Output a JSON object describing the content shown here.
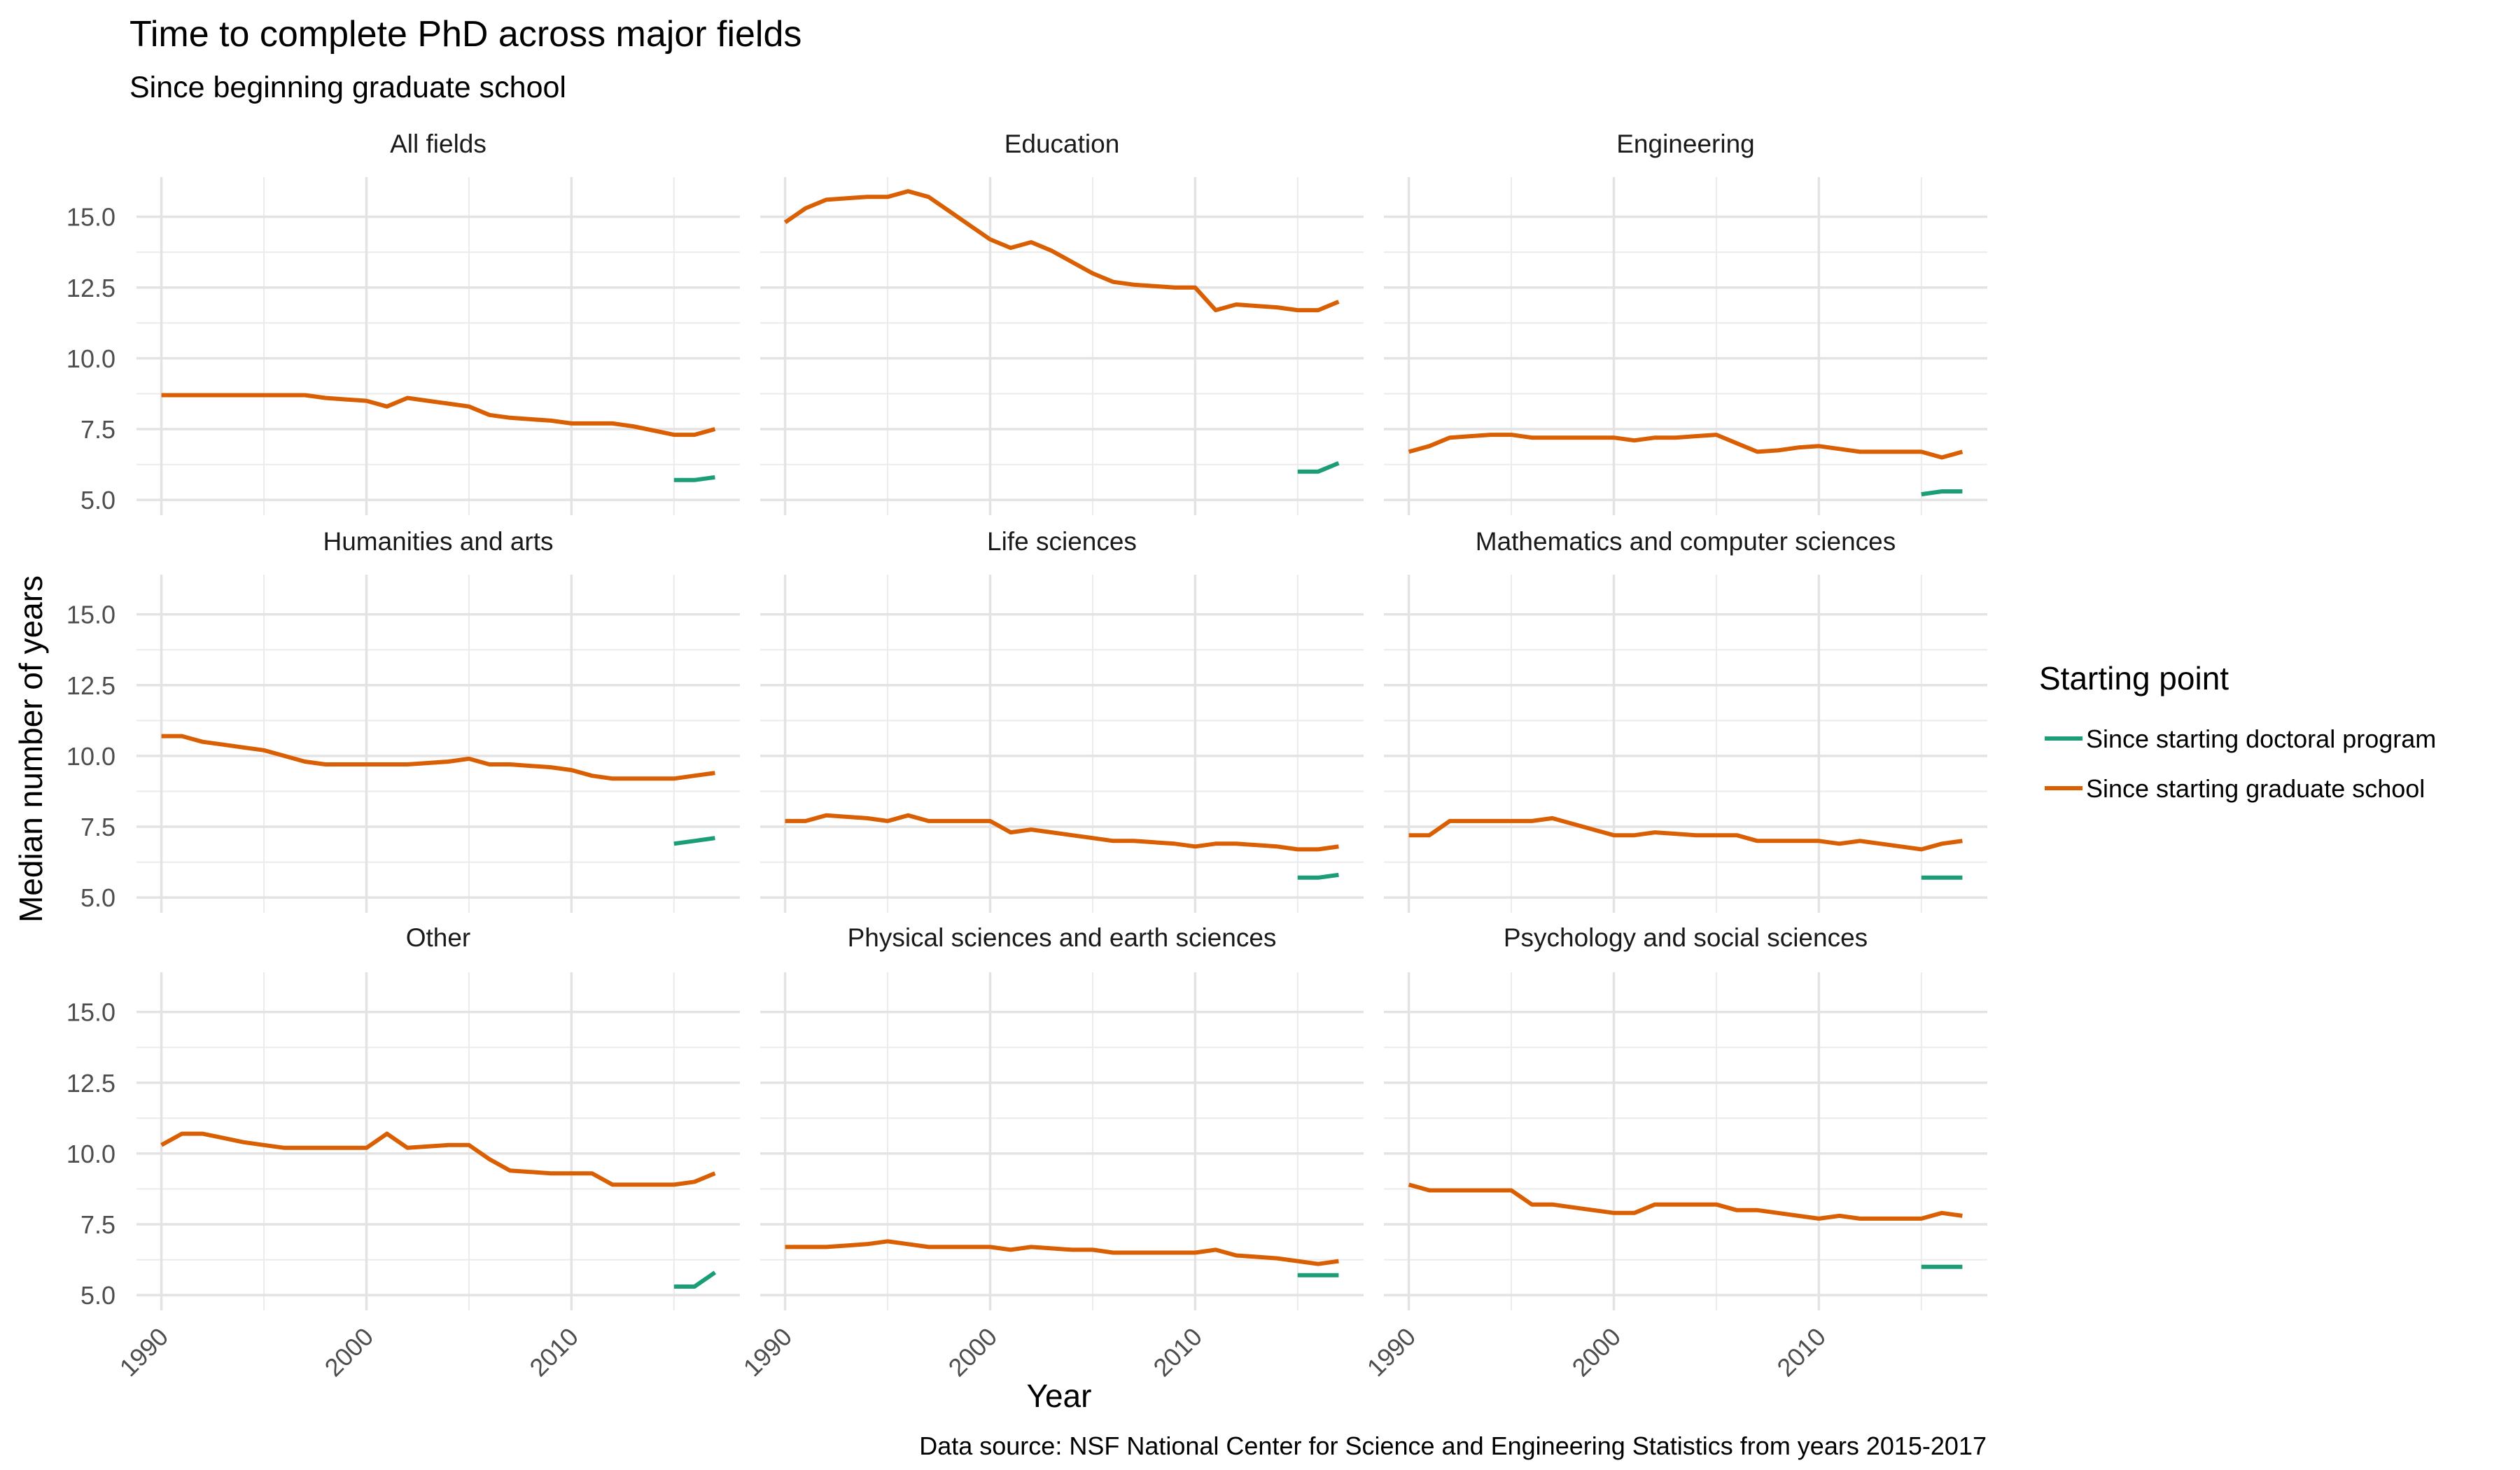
{
  "chart_data": {
    "type": "line",
    "title": "Time to complete PhD across major fields",
    "subtitle": "Since beginning graduate school",
    "xlabel": "Year",
    "ylabel": "Median number of years",
    "caption": "Data source: NSF National Center for Science and Engineering Statistics from years 2015-2017",
    "xlim": [
      1990,
      2017
    ],
    "ylim": [
      5,
      15
    ],
    "x_ticks": [
      1990,
      2000,
      2010
    ],
    "y_ticks": [
      "5.0",
      "7.5",
      "10.0",
      "12.5",
      "15.0"
    ],
    "grid": true,
    "legend": {
      "title": "Starting point",
      "position": "right",
      "entries": [
        {
          "name": "Since starting doctoral program",
          "color": "#1b9e77"
        },
        {
          "name": "Since starting graduate school",
          "color": "#d95f02"
        }
      ]
    },
    "facets": [
      {
        "label": "All fields",
        "series": [
          {
            "name": "Since starting graduate school",
            "x": [
              1990,
              1991,
              1992,
              1993,
              1994,
              1995,
              1996,
              1997,
              1998,
              1999,
              2000,
              2001,
              2002,
              2003,
              2004,
              2005,
              2006,
              2007,
              2008,
              2009,
              2010,
              2011,
              2012,
              2013,
              2014,
              2015,
              2016,
              2017
            ],
            "y": [
              8.7,
              8.7,
              8.7,
              8.7,
              8.7,
              8.7,
              8.7,
              8.7,
              8.6,
              8.55,
              8.5,
              8.3,
              8.6,
              8.5,
              8.4,
              8.3,
              8.0,
              7.9,
              7.85,
              7.8,
              7.7,
              7.7,
              7.7,
              7.6,
              7.45,
              7.3,
              7.3,
              7.5
            ]
          },
          {
            "name": "Since starting doctoral program",
            "x": [
              2015,
              2016,
              2017
            ],
            "y": [
              5.7,
              5.7,
              5.8
            ]
          }
        ]
      },
      {
        "label": "Education",
        "series": [
          {
            "name": "Since starting graduate school",
            "x": [
              1990,
              1991,
              1992,
              1993,
              1994,
              1995,
              1996,
              1997,
              1998,
              1999,
              2000,
              2001,
              2002,
              2003,
              2004,
              2005,
              2006,
              2007,
              2008,
              2009,
              2010,
              2011,
              2012,
              2013,
              2014,
              2015,
              2016,
              2017
            ],
            "y": [
              14.8,
              15.3,
              15.6,
              15.65,
              15.7,
              15.7,
              15.9,
              15.7,
              15.2,
              14.7,
              14.2,
              13.9,
              14.1,
              13.8,
              13.4,
              13.0,
              12.7,
              12.6,
              12.55,
              12.5,
              12.5,
              11.7,
              11.9,
              11.85,
              11.8,
              11.7,
              11.7,
              12.0
            ]
          },
          {
            "name": "Since starting doctoral program",
            "x": [
              2015,
              2016,
              2017
            ],
            "y": [
              6.0,
              6.0,
              6.3
            ]
          }
        ]
      },
      {
        "label": "Engineering",
        "series": [
          {
            "name": "Since starting graduate school",
            "x": [
              1990,
              1991,
              1992,
              1993,
              1994,
              1995,
              1996,
              1997,
              1998,
              1999,
              2000,
              2001,
              2002,
              2003,
              2004,
              2005,
              2006,
              2007,
              2008,
              2009,
              2010,
              2011,
              2012,
              2013,
              2014,
              2015,
              2016,
              2017
            ],
            "y": [
              6.7,
              6.9,
              7.2,
              7.25,
              7.3,
              7.3,
              7.2,
              7.2,
              7.2,
              7.2,
              7.2,
              7.1,
              7.2,
              7.2,
              7.25,
              7.3,
              7.0,
              6.7,
              6.75,
              6.85,
              6.9,
              6.8,
              6.7,
              6.7,
              6.7,
              6.7,
              6.5,
              6.7
            ]
          },
          {
            "name": "Since starting doctoral program",
            "x": [
              2015,
              2016,
              2017
            ],
            "y": [
              5.2,
              5.3,
              5.3
            ]
          }
        ]
      },
      {
        "label": "Humanities and arts",
        "series": [
          {
            "name": "Since starting graduate school",
            "x": [
              1990,
              1991,
              1992,
              1993,
              1994,
              1995,
              1996,
              1997,
              1998,
              1999,
              2000,
              2001,
              2002,
              2003,
              2004,
              2005,
              2006,
              2007,
              2008,
              2009,
              2010,
              2011,
              2012,
              2013,
              2014,
              2015,
              2016,
              2017
            ],
            "y": [
              10.7,
              10.7,
              10.5,
              10.4,
              10.3,
              10.2,
              10.0,
              9.8,
              9.7,
              9.7,
              9.7,
              9.7,
              9.7,
              9.75,
              9.8,
              9.9,
              9.7,
              9.7,
              9.65,
              9.6,
              9.5,
              9.3,
              9.2,
              9.2,
              9.2,
              9.2,
              9.3,
              9.4
            ]
          },
          {
            "name": "Since starting doctoral program",
            "x": [
              2015,
              2016,
              2017
            ],
            "y": [
              6.9,
              7.0,
              7.1
            ]
          }
        ]
      },
      {
        "label": "Life sciences",
        "series": [
          {
            "name": "Since starting graduate school",
            "x": [
              1990,
              1991,
              1992,
              1993,
              1994,
              1995,
              1996,
              1997,
              1998,
              1999,
              2000,
              2001,
              2002,
              2003,
              2004,
              2005,
              2006,
              2007,
              2008,
              2009,
              2010,
              2011,
              2012,
              2013,
              2014,
              2015,
              2016,
              2017
            ],
            "y": [
              7.7,
              7.7,
              7.9,
              7.85,
              7.8,
              7.7,
              7.9,
              7.7,
              7.7,
              7.7,
              7.7,
              7.3,
              7.4,
              7.3,
              7.2,
              7.1,
              7.0,
              7.0,
              6.95,
              6.9,
              6.8,
              6.9,
              6.9,
              6.85,
              6.8,
              6.7,
              6.7,
              6.8
            ]
          },
          {
            "name": "Since starting doctoral program",
            "x": [
              2015,
              2016,
              2017
            ],
            "y": [
              5.7,
              5.7,
              5.8
            ]
          }
        ]
      },
      {
        "label": "Mathematics and computer sciences",
        "series": [
          {
            "name": "Since starting graduate school",
            "x": [
              1990,
              1991,
              1992,
              1993,
              1994,
              1995,
              1996,
              1997,
              1998,
              1999,
              2000,
              2001,
              2002,
              2003,
              2004,
              2005,
              2006,
              2007,
              2008,
              2009,
              2010,
              2011,
              2012,
              2013,
              2014,
              2015,
              2016,
              2017
            ],
            "y": [
              7.2,
              7.2,
              7.7,
              7.7,
              7.7,
              7.7,
              7.7,
              7.8,
              7.6,
              7.4,
              7.2,
              7.2,
              7.3,
              7.25,
              7.2,
              7.2,
              7.2,
              7.0,
              7.0,
              7.0,
              7.0,
              6.9,
              7.0,
              6.9,
              6.8,
              6.7,
              6.9,
              7.0
            ]
          },
          {
            "name": "Since starting doctoral program",
            "x": [
              2015,
              2016,
              2017
            ],
            "y": [
              5.7,
              5.7,
              5.7
            ]
          }
        ]
      },
      {
        "label": "Other",
        "series": [
          {
            "name": "Since starting graduate school",
            "x": [
              1990,
              1991,
              1992,
              1993,
              1994,
              1995,
              1996,
              1997,
              1998,
              1999,
              2000,
              2001,
              2002,
              2003,
              2004,
              2005,
              2006,
              2007,
              2008,
              2009,
              2010,
              2011,
              2012,
              2013,
              2014,
              2015,
              2016,
              2017
            ],
            "y": [
              10.3,
              10.7,
              10.7,
              10.55,
              10.4,
              10.3,
              10.2,
              10.2,
              10.2,
              10.2,
              10.2,
              10.7,
              10.2,
              10.25,
              10.3,
              10.3,
              9.8,
              9.4,
              9.35,
              9.3,
              9.3,
              9.3,
              8.9,
              8.9,
              8.9,
              8.9,
              9.0,
              9.3
            ]
          },
          {
            "name": "Since starting doctoral program",
            "x": [
              2015,
              2016,
              2017
            ],
            "y": [
              5.3,
              5.3,
              5.8
            ]
          }
        ]
      },
      {
        "label": "Physical sciences and earth sciences",
        "series": [
          {
            "name": "Since starting graduate school",
            "x": [
              1990,
              1991,
              1992,
              1993,
              1994,
              1995,
              1996,
              1997,
              1998,
              1999,
              2000,
              2001,
              2002,
              2003,
              2004,
              2005,
              2006,
              2007,
              2008,
              2009,
              2010,
              2011,
              2012,
              2013,
              2014,
              2015,
              2016,
              2017
            ],
            "y": [
              6.7,
              6.7,
              6.7,
              6.75,
              6.8,
              6.9,
              6.8,
              6.7,
              6.7,
              6.7,
              6.7,
              6.6,
              6.7,
              6.65,
              6.6,
              6.6,
              6.5,
              6.5,
              6.5,
              6.5,
              6.5,
              6.6,
              6.4,
              6.35,
              6.3,
              6.2,
              6.1,
              6.2
            ]
          },
          {
            "name": "Since starting doctoral program",
            "x": [
              2015,
              2016,
              2017
            ],
            "y": [
              5.7,
              5.7,
              5.7
            ]
          }
        ]
      },
      {
        "label": "Psychology and social sciences",
        "series": [
          {
            "name": "Since starting graduate school",
            "x": [
              1990,
              1991,
              1992,
              1993,
              1994,
              1995,
              1996,
              1997,
              1998,
              1999,
              2000,
              2001,
              2002,
              2003,
              2004,
              2005,
              2006,
              2007,
              2008,
              2009,
              2010,
              2011,
              2012,
              2013,
              2014,
              2015,
              2016,
              2017
            ],
            "y": [
              8.9,
              8.7,
              8.7,
              8.7,
              8.7,
              8.7,
              8.2,
              8.2,
              8.1,
              8.0,
              7.9,
              7.9,
              8.2,
              8.2,
              8.2,
              8.2,
              8.0,
              8.0,
              7.9,
              7.8,
              7.7,
              7.8,
              7.7,
              7.7,
              7.7,
              7.7,
              7.9,
              7.8
            ]
          },
          {
            "name": "Since starting doctoral program",
            "x": [
              2015,
              2016,
              2017
            ],
            "y": [
              6.0,
              6.0,
              6.0
            ]
          }
        ]
      }
    ]
  }
}
